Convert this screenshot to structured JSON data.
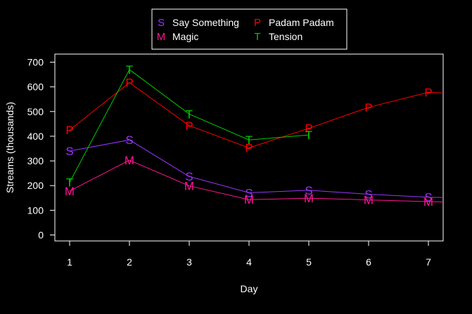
{
  "chart_data": {
    "type": "line",
    "title": "",
    "xlabel": "Day",
    "ylabel": "Streams (thousands)",
    "x": [
      1,
      2,
      3,
      4,
      5,
      6,
      7
    ],
    "xlim": [
      1,
      7.3
    ],
    "ylim": [
      0,
      700
    ],
    "yticks": [
      0,
      100,
      200,
      300,
      400,
      500,
      600,
      700
    ],
    "grid": false,
    "legend_position": "top-center",
    "background": "#000000",
    "foreground": "#ffffff",
    "series": [
      {
        "name": "Say Something",
        "marker": "S",
        "color": "#9933ff",
        "values": [
          340,
          385,
          237,
          171,
          181,
          165,
          153
        ],
        "extend_to": 152
      },
      {
        "name": "Padam Padam",
        "marker": "P",
        "color": "#ff0000",
        "values": [
          425,
          617,
          443,
          353,
          432,
          517,
          578
        ],
        "extend_to": 575
      },
      {
        "name": "Magic",
        "marker": "M",
        "color": "#ff1493",
        "values": [
          178,
          303,
          199,
          143,
          149,
          142,
          135
        ],
        "extend_to": 134
      },
      {
        "name": "Tension",
        "marker": "T",
        "color": "#00cc00",
        "values": [
          213,
          670,
          490,
          385,
          405,
          null,
          null
        ],
        "extend_to": null
      }
    ]
  }
}
